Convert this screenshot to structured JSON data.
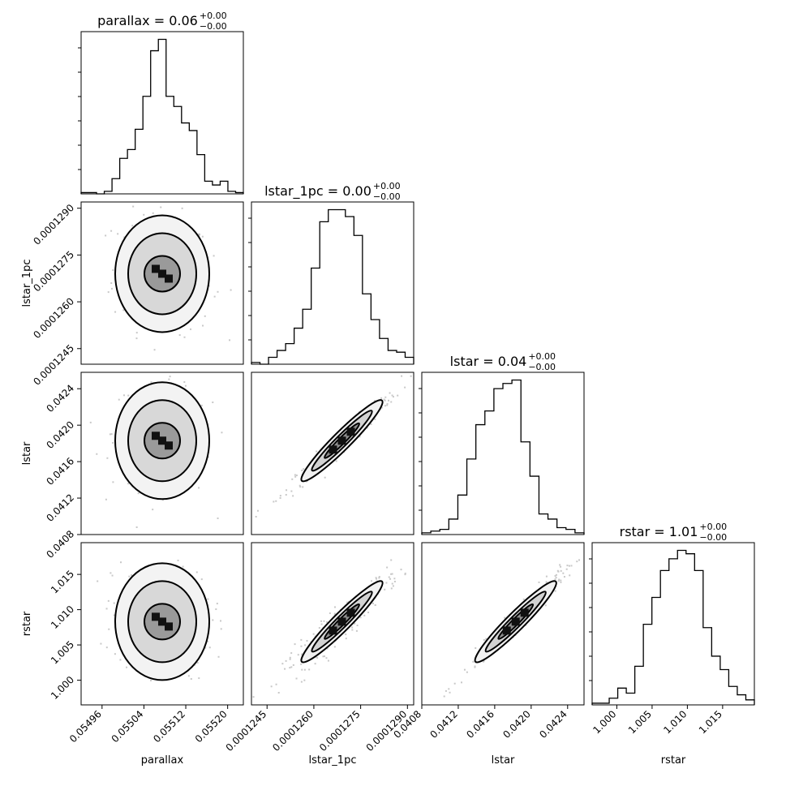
{
  "chart_data": {
    "type": "corner",
    "parameters": [
      "parallax",
      "lstar_1pc",
      "lstar",
      "rstar"
    ],
    "titles": [
      {
        "param": "parallax",
        "text": "parallax = 0.06",
        "sup": "+0.00",
        "sub": "−0.00"
      },
      {
        "param": "lstar_1pc",
        "text": "lstar_1pc = 0.00",
        "sup": "+0.00",
        "sub": "−0.00"
      },
      {
        "param": "lstar",
        "text": "lstar = 0.04",
        "sup": "+0.00",
        "sub": "−0.00"
      },
      {
        "param": "rstar",
        "text": "rstar = 1.01",
        "sup": "+0.00",
        "sub": "−0.00"
      }
    ],
    "xlabels": [
      "parallax",
      "lstar_1pc",
      "lstar",
      "rstar"
    ],
    "ylabels": [
      "lstar_1pc",
      "lstar",
      "rstar"
    ],
    "axes": [
      {
        "param": "parallax",
        "range": [
          0.05492,
          0.05523
        ],
        "ticks": [
          0.05496,
          0.05504,
          0.05512,
          0.0552
        ],
        "tick_labels": [
          "0.05496",
          "0.05504",
          "0.05512",
          "0.05520"
        ]
      },
      {
        "param": "lstar_1pc",
        "range": [
          0.000124,
          0.0001292
        ],
        "ticks": [
          0.0001245,
          0.000126,
          0.0001275,
          0.000129
        ],
        "tick_labels": [
          "0.0001245",
          "0.0001260",
          "0.0001275",
          "0.0001290"
        ]
      },
      {
        "param": "lstar",
        "range": [
          0.0408,
          0.04258
        ],
        "ticks": [
          0.0408,
          0.0412,
          0.0416,
          0.042,
          0.0424
        ],
        "tick_labels": [
          "0.0408",
          "0.0412",
          "0.0416",
          "0.0420",
          "0.0424"
        ]
      },
      {
        "param": "rstar",
        "range": [
          0.9965,
          1.0195
        ],
        "ticks": [
          1.0,
          1.005,
          1.01,
          1.015
        ],
        "tick_labels": [
          "1.000",
          "1.005",
          "1.010",
          "1.015"
        ]
      }
    ],
    "histograms": [
      {
        "param": "parallax",
        "counts": [
          1,
          1,
          0,
          2,
          12,
          28,
          35,
          51,
          77,
          113,
          122,
          77,
          69,
          56,
          50,
          31,
          10,
          7,
          10,
          2,
          1
        ]
      },
      {
        "param": "lstar_1pc",
        "counts": [
          1,
          0,
          4,
          8,
          12,
          21,
          32,
          56,
          83,
          90,
          90,
          86,
          75,
          41,
          26,
          15,
          8,
          7,
          4
        ]
      },
      {
        "param": "lstar",
        "counts": [
          1,
          2,
          3,
          9,
          23,
          44,
          64,
          72,
          85,
          88,
          90,
          54,
          34,
          12,
          9,
          4,
          3,
          1
        ]
      },
      {
        "param": "rstar",
        "counts": [
          1,
          1,
          4,
          10,
          7,
          23,
          48,
          64,
          80,
          87,
          92,
          90,
          80,
          46,
          29,
          21,
          11,
          6,
          3
        ]
      }
    ],
    "grid": false,
    "legend": "none"
  }
}
